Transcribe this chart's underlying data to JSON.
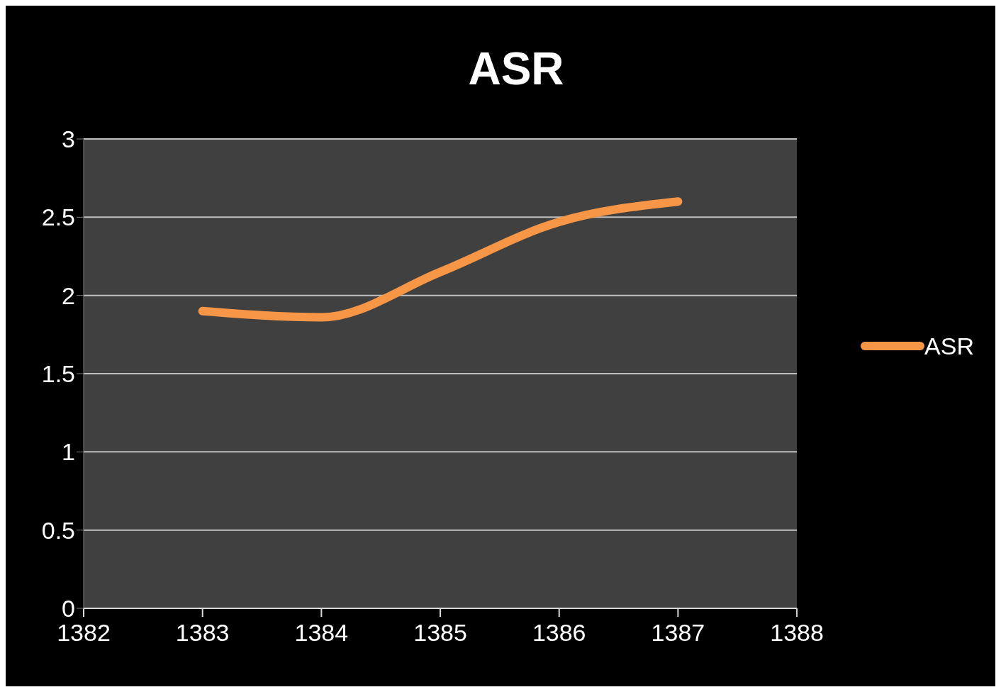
{
  "chart_data": {
    "type": "line",
    "title": "ASR",
    "x": [
      1383,
      1384,
      1385,
      1386,
      1387
    ],
    "series": [
      {
        "name": "ASR",
        "color": "#f79646",
        "values": [
          1.9,
          1.86,
          2.15,
          2.47,
          2.6
        ]
      }
    ],
    "xlim": [
      1382,
      1388
    ],
    "xticks": [
      1382,
      1383,
      1384,
      1385,
      1386,
      1387,
      1388
    ],
    "ylim": [
      0,
      3
    ],
    "yticks": [
      0,
      0.5,
      1,
      1.5,
      2,
      2.5,
      3
    ],
    "grid": "y",
    "legend": "right",
    "marker": "none",
    "line_style": "solid"
  }
}
